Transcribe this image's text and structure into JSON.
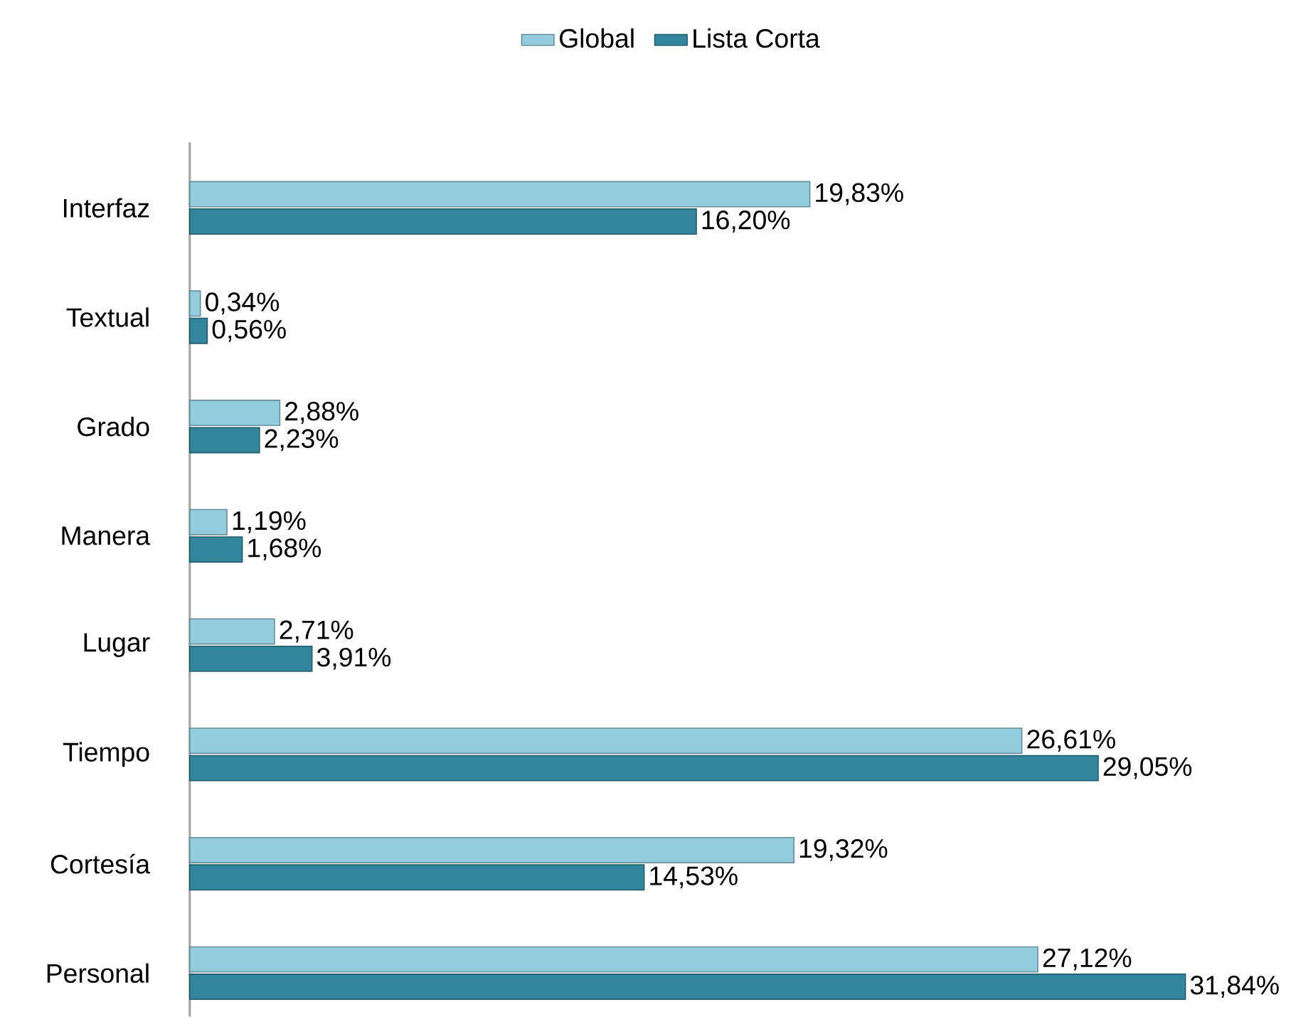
{
  "chart_data": {
    "type": "bar",
    "orientation": "horizontal",
    "legend": "top",
    "categories": [
      "Interfaz",
      "Textual",
      "Grado",
      "Manera",
      "Lugar",
      "Tiempo",
      "Cortesía",
      "Personal"
    ],
    "series": [
      {
        "name": "Global",
        "color": "#93cddd",
        "values": [
          19.83,
          0.34,
          2.88,
          1.19,
          2.71,
          26.61,
          19.32,
          27.12
        ],
        "value_labels": [
          "19,83%",
          "0,34%",
          "2,88%",
          "1,19%",
          "2,71%",
          "26,61%",
          "19,32%",
          "27,12%"
        ]
      },
      {
        "name": "Lista Corta",
        "color": "#31859c",
        "values": [
          16.2,
          0.56,
          2.23,
          1.68,
          3.91,
          29.05,
          14.53,
          31.84
        ],
        "value_labels": [
          "16,20%",
          "0,56%",
          "2,23%",
          "1,68%",
          "3,91%",
          "29,05%",
          "14,53%",
          "31,84%"
        ]
      }
    ]
  }
}
